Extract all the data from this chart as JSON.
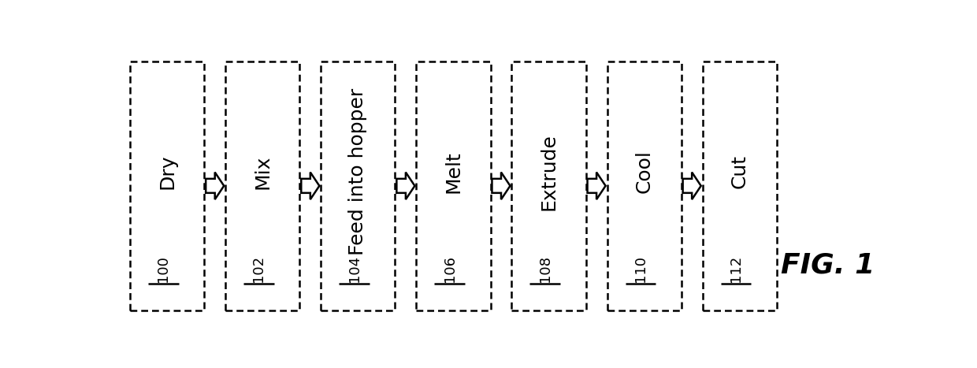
{
  "steps": [
    {
      "number": "100",
      "label": "Dry"
    },
    {
      "number": "102",
      "label": "Mix"
    },
    {
      "number": "104",
      "label": "Feed into hopper"
    },
    {
      "number": "106",
      "label": "Melt"
    },
    {
      "number": "108",
      "label": "Extrude"
    },
    {
      "number": "110",
      "label": "Cool"
    },
    {
      "number": "112",
      "label": "Cut"
    }
  ],
  "fig_label": "FIG. 1",
  "background_color": "#ffffff",
  "box_edge_color": "#000000",
  "text_color": "#000000",
  "arrow_color": "#000000",
  "fig_width": 12.4,
  "fig_height": 4.67,
  "number_fontsize": 13,
  "label_fontsize": 18,
  "fig_label_fontsize": 26
}
